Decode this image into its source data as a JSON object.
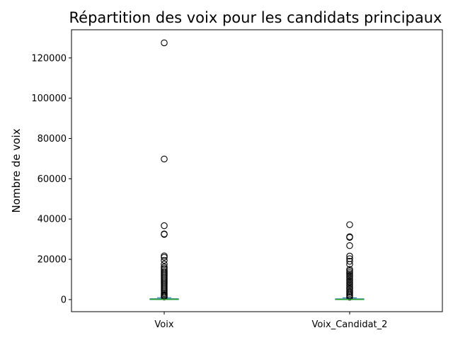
{
  "chart_data": {
    "type": "box",
    "title": "Répartition des voix pour les candidats principaux",
    "xlabel": "",
    "ylabel": "Nombre de voix",
    "ylim": [
      -6000,
      134000
    ],
    "yticks": [
      0,
      20000,
      40000,
      60000,
      80000,
      100000,
      120000
    ],
    "ytick_labels": [
      "0",
      "20000",
      "40000",
      "60000",
      "80000",
      "100000",
      "120000"
    ],
    "grid": false,
    "categories": [
      "Voix",
      "Voix_Candidat_2"
    ],
    "series": [
      {
        "category": "Voix",
        "box": {
          "whisker_low": 0,
          "q1": 30,
          "median": 120,
          "q3": 400,
          "whisker_high": 950
        },
        "outliers": [
          127500,
          69800,
          36700,
          32600,
          32400,
          21700,
          21000,
          19500,
          17600,
          16200,
          15500,
          14800,
          14000,
          13300,
          12600,
          11900,
          11200,
          10500,
          9800,
          9100,
          8400,
          7700,
          7000,
          6300,
          5600,
          4900,
          4200,
          3500,
          2900,
          2300,
          1800,
          1300
        ]
      },
      {
        "category": "Voix_Candidat_2",
        "box": {
          "whisker_low": 0,
          "q1": 25,
          "median": 100,
          "q3": 350,
          "whisker_high": 850
        },
        "outliers": [
          37200,
          31200,
          30900,
          26800,
          21600,
          20300,
          19000,
          17500,
          15000,
          14200,
          13400,
          12600,
          11800,
          11000,
          10200,
          9400,
          8600,
          7800,
          7000,
          6200,
          5400,
          4600,
          3800,
          3100,
          2400,
          1800,
          1200
        ]
      }
    ],
    "colors": {
      "box": "#1f77b4",
      "median": "#2ca02c",
      "outlier": "#000000",
      "axis": "#000000"
    }
  }
}
